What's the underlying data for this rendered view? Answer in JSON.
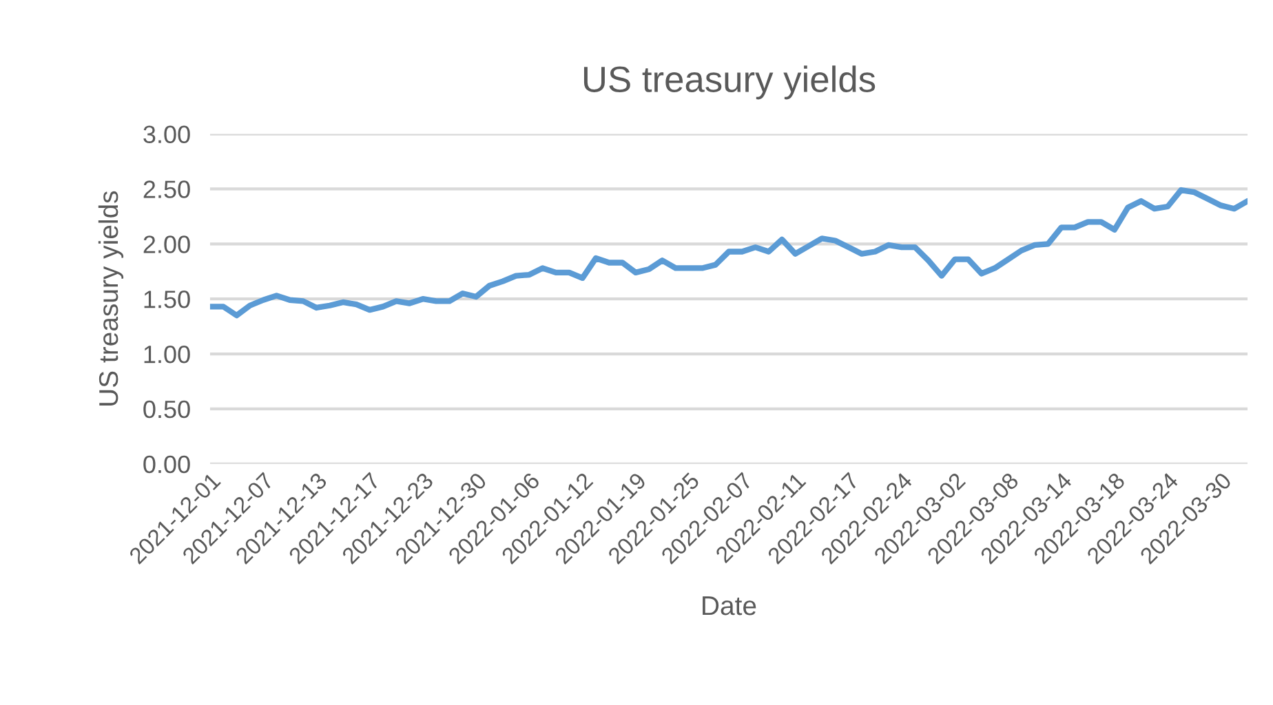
{
  "chart_data": {
    "type": "line",
    "title": "US treasury yields",
    "xlabel": "Date",
    "ylabel": "US treasury yields",
    "categories": [
      "2021-12-01",
      null,
      null,
      null,
      "2021-12-07",
      null,
      null,
      null,
      "2021-12-13",
      null,
      null,
      null,
      "2021-12-17",
      null,
      null,
      null,
      "2021-12-23",
      null,
      null,
      null,
      "2021-12-30",
      null,
      null,
      null,
      "2022-01-06",
      null,
      null,
      null,
      "2022-01-12",
      null,
      null,
      null,
      "2022-01-19",
      null,
      null,
      null,
      "2022-01-25",
      null,
      null,
      null,
      "2022-02-07",
      null,
      null,
      null,
      "2022-02-11",
      null,
      null,
      null,
      "2022-02-17",
      null,
      null,
      null,
      "2022-02-24",
      null,
      null,
      null,
      "2022-03-02",
      null,
      null,
      null,
      "2022-03-08",
      null,
      null,
      null,
      "2022-03-14",
      null,
      null,
      null,
      "2022-03-18",
      null,
      null,
      null,
      "2022-03-24",
      null,
      null,
      null,
      "2022-03-30",
      null,
      null
    ],
    "series": [
      {
        "color": "#5b9bd5",
        "values": [
          1.43,
          1.43,
          1.35,
          1.44,
          1.49,
          1.53,
          1.49,
          1.48,
          1.42,
          1.44,
          1.47,
          1.45,
          1.4,
          1.43,
          1.48,
          1.46,
          1.5,
          1.48,
          1.48,
          1.55,
          1.52,
          1.62,
          1.66,
          1.71,
          1.72,
          1.78,
          1.74,
          1.74,
          1.69,
          1.87,
          1.83,
          1.83,
          1.74,
          1.77,
          1.85,
          1.78,
          1.78,
          1.78,
          1.81,
          1.93,
          1.93,
          1.97,
          1.93,
          2.04,
          1.91,
          1.98,
          2.05,
          2.03,
          1.97,
          1.91,
          1.93,
          1.99,
          1.97,
          1.97,
          1.85,
          1.71,
          1.86,
          1.86,
          1.73,
          1.78,
          1.86,
          1.94,
          1.99,
          2.0,
          2.15,
          2.15,
          2.2,
          2.2,
          2.13,
          2.33,
          2.39,
          2.32,
          2.34,
          2.49,
          2.47,
          2.41,
          2.35,
          2.32,
          2.39
        ]
      }
    ],
    "ylim": [
      0,
      3
    ],
    "yticks": [
      {
        "value": 0,
        "label": "0.00"
      },
      {
        "value": 0.5,
        "label": "0.50"
      },
      {
        "value": 1,
        "label": "1.00"
      },
      {
        "value": 1.5,
        "label": "1.50"
      },
      {
        "value": 2,
        "label": "2.00"
      },
      {
        "value": 2.5,
        "label": "2.50"
      },
      {
        "value": 3,
        "label": "3.00"
      }
    ],
    "grid": "y",
    "marker": "none",
    "line_style": "solid"
  }
}
